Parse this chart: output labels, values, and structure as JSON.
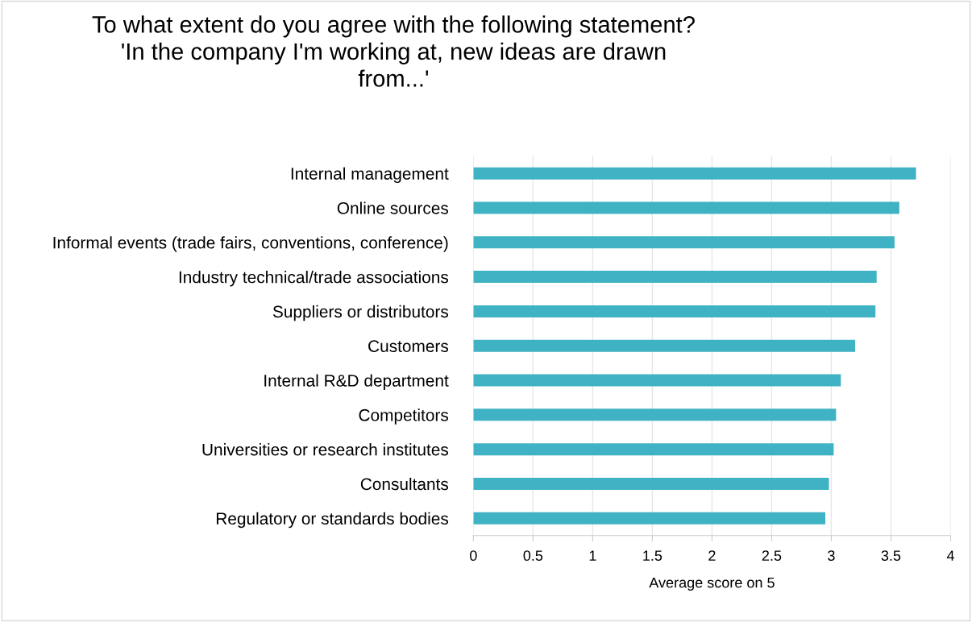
{
  "chart_data": {
    "type": "bar",
    "orientation": "horizontal",
    "title": "To what extent do you agree with the following statement?\n'In the company I'm working at, new ideas are drawn\nfrom...'",
    "xlabel": "Average score on 5",
    "categories": [
      "Internal management",
      "Online sources",
      "Informal events (trade fairs, conventions, conference)",
      "Industry technical/trade associations",
      "Suppliers or distributors",
      "Customers",
      "Internal R&D department",
      "Competitors",
      "Universities or research institutes",
      "Consultants",
      "Regulatory or standards bodies"
    ],
    "values": [
      3.71,
      3.57,
      3.53,
      3.38,
      3.37,
      3.2,
      3.08,
      3.04,
      3.02,
      2.98,
      2.95
    ],
    "color": "#3fb3c3",
    "xlim": [
      0,
      4
    ],
    "xticks": [
      0,
      0.5,
      1,
      1.5,
      2,
      2.5,
      3,
      3.5,
      4
    ],
    "grid": "x"
  }
}
